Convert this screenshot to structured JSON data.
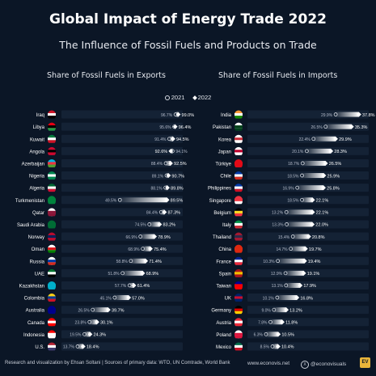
{
  "header": {
    "title": "Global Impact of Energy Trade 2022",
    "subtitle": "The Influence of Fossil Fuels and Products on Trade"
  },
  "legend": {
    "label_2021": "2021",
    "label_2022": "2022"
  },
  "footer": {
    "credit": "Research and visualization by Ehsan Soltani | Sources of primary data: WTO, UN Comtrade, World Bank",
    "site": "www.econovis.net",
    "handle": "@econovisuals",
    "logo": "EV"
  },
  "colors": {
    "background": "#0b1626",
    "bar_fill": "#ffffff",
    "row_band": "#142235"
  },
  "chart_data": [
    {
      "type": "bar",
      "title": "Share of Fossil Fuels in Exports",
      "unit": "%",
      "xlim": [
        0,
        100
      ],
      "series_names": [
        "2021",
        "2022"
      ],
      "rows": [
        {
          "country": "Iraq",
          "v2021": 96.7,
          "v2022": 99.0,
          "l2021": "96.7%",
          "l2022": "99.0%",
          "flag": [
            "#ce1126",
            "#ffffff",
            "#000000"
          ]
        },
        {
          "country": "Libya",
          "v2021": 95.6,
          "v2022": 96.4,
          "l2021": "95.6%",
          "l2022": "96.4%",
          "flag": [
            "#e70013",
            "#000000",
            "#239e46"
          ]
        },
        {
          "country": "Kuwait",
          "v2021": 91.4,
          "v2022": 94.5,
          "l2021": "91.4%",
          "l2022": "94.5%",
          "flag": [
            "#007a3d",
            "#ffffff",
            "#ce1126"
          ]
        },
        {
          "country": "Angola",
          "v2021": 94.1,
          "v2022": 92.6,
          "l2021": "94.1%",
          "l2022": "92.6%",
          "flag": [
            "#cc092f",
            "#000000",
            "#cc092f"
          ]
        },
        {
          "country": "Azerbaijan",
          "v2021": 88.4,
          "v2022": 92.5,
          "l2021": "88.4%",
          "l2022": "92.5%",
          "flag": [
            "#00b5e2",
            "#ef3340",
            "#509e2f"
          ]
        },
        {
          "country": "Nigeria",
          "v2021": 89.1,
          "v2022": 90.7,
          "l2021": "89.1%",
          "l2022": "90.7%",
          "flag": [
            "#008751",
            "#ffffff",
            "#008751"
          ]
        },
        {
          "country": "Algeria",
          "v2021": 88.1,
          "v2022": 89.8,
          "l2021": "88.1%",
          "l2022": "89.8%",
          "flag": [
            "#006633",
            "#ffffff",
            "#d21034"
          ]
        },
        {
          "country": "Turkmenistan",
          "v2021": 49.5,
          "v2022": 89.5,
          "l2021": "49.5%",
          "l2022": "89.5%",
          "flag": [
            "#00843d",
            "#00843d",
            "#00843d"
          ]
        },
        {
          "country": "Qatar",
          "v2021": 84.4,
          "v2022": 87.3,
          "l2021": "84.4%",
          "l2022": "87.3%",
          "flag": [
            "#ffffff",
            "#8a1538",
            "#8a1538"
          ]
        },
        {
          "country": "Saudi Arabia",
          "v2021": 74.5,
          "v2022": 83.2,
          "l2021": "74.5%",
          "l2022": "83.2%",
          "flag": [
            "#006c35",
            "#006c35",
            "#006c35"
          ]
        },
        {
          "country": "Norway",
          "v2021": 66.9,
          "v2022": 78.9,
          "l2021": "66.9%",
          "l2022": "78.9%",
          "flag": [
            "#ba0c2f",
            "#00205b",
            "#ba0c2f"
          ]
        },
        {
          "country": "Oman",
          "v2021": 68.9,
          "v2022": 75.4,
          "l2021": "68.9%",
          "l2022": "75.4%",
          "flag": [
            "#ffffff",
            "#db161b",
            "#008000"
          ]
        },
        {
          "country": "Russia",
          "v2021": 58.8,
          "v2022": 71.4,
          "l2021": "58.8%",
          "l2022": "71.4%",
          "flag": [
            "#ffffff",
            "#0039a6",
            "#d52b1e"
          ]
        },
        {
          "country": "UAE",
          "v2021": 51.8,
          "v2022": 68.9,
          "l2021": "51.8%",
          "l2022": "68.9%",
          "flag": [
            "#00732f",
            "#ffffff",
            "#000000"
          ]
        },
        {
          "country": "Kazakhstan",
          "v2021": 57.7,
          "v2022": 61.4,
          "l2021": "57.7%",
          "l2022": "61.4%",
          "flag": [
            "#00afca",
            "#00afca",
            "#00afca"
          ]
        },
        {
          "country": "Colombia",
          "v2021": 45.1,
          "v2022": 57.0,
          "l2021": "45.1%",
          "l2022": "57.0%",
          "flag": [
            "#fcd116",
            "#003893",
            "#ce1126"
          ]
        },
        {
          "country": "Australia",
          "v2021": 26.5,
          "v2022": 39.7,
          "l2021": "26.5%",
          "l2022": "39.7%",
          "flag": [
            "#00008b",
            "#00008b",
            "#00008b"
          ]
        },
        {
          "country": "Canada",
          "v2021": 23.8,
          "v2022": 30.1,
          "l2021": "23.8%",
          "l2022": "30.1%",
          "flag": [
            "#ff0000",
            "#ffffff",
            "#ff0000"
          ]
        },
        {
          "country": "Indonesia",
          "v2021": 19.5,
          "v2022": 24.3,
          "l2021": "19.5%",
          "l2022": "24.3%",
          "flag": [
            "#ff0000",
            "#ffffff",
            "#ffffff"
          ]
        },
        {
          "country": "U.S.",
          "v2021": 13.7,
          "v2022": 18.4,
          "l2021": "13.7%",
          "l2022": "18.4%",
          "flag": [
            "#b22234",
            "#ffffff",
            "#3c3b6e"
          ]
        }
      ]
    },
    {
      "type": "bar",
      "title": "Share of Fossil Fuels in Imports",
      "unit": "%",
      "xlim": [
        0,
        40
      ],
      "series_names": [
        "2021",
        "2022"
      ],
      "rows": [
        {
          "country": "India",
          "v2021": 29.9,
          "v2022": 37.8,
          "l2021": "29.9%",
          "l2022": "37.8%",
          "flag": [
            "#ff9933",
            "#ffffff",
            "#138808"
          ]
        },
        {
          "country": "Pakistan",
          "v2021": 26.5,
          "v2022": 35.3,
          "l2021": "26.5%",
          "l2022": "35.3%",
          "flag": [
            "#ffffff",
            "#01411c",
            "#01411c"
          ]
        },
        {
          "country": "Korea",
          "v2021": 22.4,
          "v2022": 29.9,
          "l2021": "22.4%",
          "l2022": "29.9%",
          "flag": [
            "#ffffff",
            "#cd2e3a",
            "#ffffff"
          ]
        },
        {
          "country": "Japan",
          "v2021": 20.1,
          "v2022": 28.3,
          "l2021": "20.1%",
          "l2022": "28.3%",
          "flag": [
            "#ffffff",
            "#bc002d",
            "#ffffff"
          ]
        },
        {
          "country": "Türkiye",
          "v2021": 18.7,
          "v2022": 26.5,
          "l2021": "18.7%",
          "l2022": "26.5%",
          "flag": [
            "#e30a17",
            "#e30a17",
            "#e30a17"
          ]
        },
        {
          "country": "Chile",
          "v2021": 18.5,
          "v2022": 25.9,
          "l2021": "18.5%",
          "l2022": "25.9%",
          "flag": [
            "#0039a6",
            "#ffffff",
            "#d52b1e"
          ]
        },
        {
          "country": "Philippines",
          "v2021": 16.9,
          "v2022": 25.8,
          "l2021": "16.9%",
          "l2022": "25.8%",
          "flag": [
            "#0038a8",
            "#ffffff",
            "#ce1126"
          ]
        },
        {
          "country": "Singapore",
          "v2021": 18.5,
          "v2022": 22.1,
          "l2021": "18.5%",
          "l2022": "22.1%",
          "flag": [
            "#ef3340",
            "#ef3340",
            "#ffffff"
          ]
        },
        {
          "country": "Belgium",
          "v2021": 13.2,
          "v2022": 22.1,
          "l2021": "13.2%",
          "l2022": "22.1%",
          "flag": [
            "#000000",
            "#fdda24",
            "#ef3340"
          ]
        },
        {
          "country": "Italy",
          "v2021": 13.3,
          "v2022": 22.0,
          "l2021": "13.3%",
          "l2022": "22.0%",
          "flag": [
            "#009246",
            "#ffffff",
            "#ce2b37"
          ]
        },
        {
          "country": "Thailand",
          "v2021": 15.4,
          "v2022": 20.8,
          "l2021": "15.4%",
          "l2022": "20.8%",
          "flag": [
            "#a51931",
            "#2d2a4a",
            "#a51931"
          ]
        },
        {
          "country": "China",
          "v2021": 14.7,
          "v2022": 19.7,
          "l2021": "14.7%",
          "l2022": "19.7%",
          "flag": [
            "#de2910",
            "#de2910",
            "#de2910"
          ]
        },
        {
          "country": "France",
          "v2021": 10.3,
          "v2022": 19.4,
          "l2021": "10.3%",
          "l2022": "19.4%",
          "flag": [
            "#002395",
            "#ffffff",
            "#ed2939"
          ]
        },
        {
          "country": "Spain",
          "v2021": 12.9,
          "v2022": 19.1,
          "l2021": "12.9%",
          "l2022": "19.1%",
          "flag": [
            "#aa151b",
            "#f1bf00",
            "#aa151b"
          ]
        },
        {
          "country": "Taiwan",
          "v2021": 13.1,
          "v2022": 17.9,
          "l2021": "13.1%",
          "l2022": "17.9%",
          "flag": [
            "#000095",
            "#fe0000",
            "#fe0000"
          ]
        },
        {
          "country": "UK",
          "v2021": 10.1,
          "v2022": 16.8,
          "l2021": "10.1%",
          "l2022": "16.8%",
          "flag": [
            "#012169",
            "#c8102e",
            "#012169"
          ]
        },
        {
          "country": "Germany",
          "v2021": 9.0,
          "v2022": 13.2,
          "l2021": "9.0%",
          "l2022": "13.2%",
          "flag": [
            "#000000",
            "#dd0000",
            "#ffce00"
          ]
        },
        {
          "country": "Austria",
          "v2021": 7.8,
          "v2022": 11.8,
          "l2021": "7.8%",
          "l2022": "11.8%",
          "flag": [
            "#ed2939",
            "#ffffff",
            "#ed2939"
          ]
        },
        {
          "country": "Poland",
          "v2021": 6.3,
          "v2022": 10.5,
          "l2021": "6.3%",
          "l2022": "10.5%",
          "flag": [
            "#ffffff",
            "#dc143c",
            "#dc143c"
          ]
        },
        {
          "country": "Mexico",
          "v2021": 8.5,
          "v2022": 10.4,
          "l2021": "8.5%",
          "l2022": "10.4%",
          "flag": [
            "#006847",
            "#ffffff",
            "#ce1126"
          ]
        }
      ]
    }
  ]
}
